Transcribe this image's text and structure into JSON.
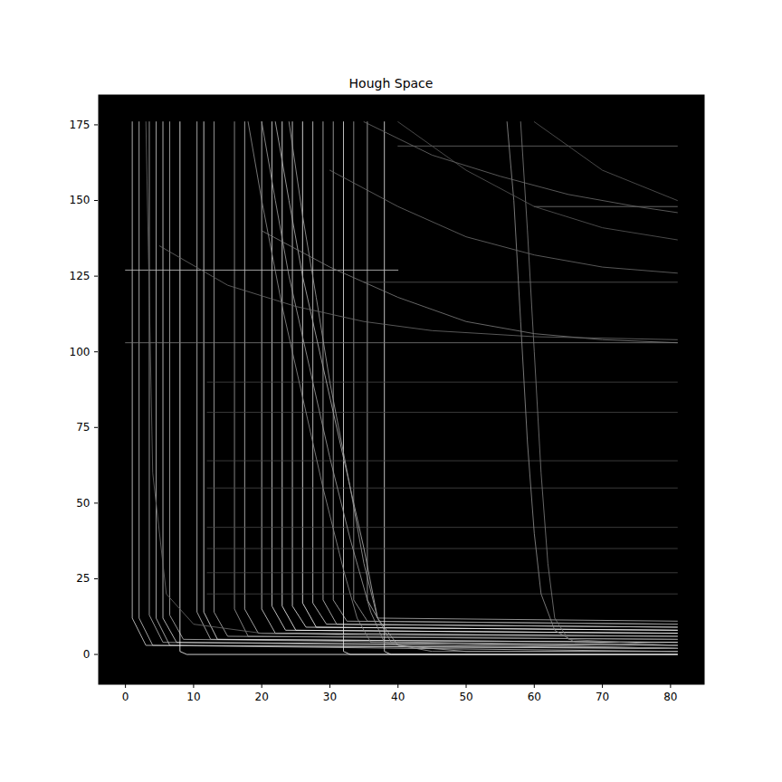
{
  "chart_data": {
    "type": "line",
    "title": "Hough Space",
    "xlim": [
      -4,
      85
    ],
    "ylim": [
      -10,
      185
    ],
    "xticks": [
      0,
      10,
      20,
      30,
      40,
      50,
      60,
      70,
      80
    ],
    "yticks": [
      0,
      25,
      50,
      75,
      100,
      125,
      150,
      175
    ],
    "grid": false,
    "series": [
      {
        "color": "#cccccc",
        "x": [
          1,
          1,
          3,
          81
        ],
        "values": [
          176,
          12,
          3,
          2
        ]
      },
      {
        "color": "#bbbbbb",
        "x": [
          2,
          2,
          4,
          81
        ],
        "values": [
          176,
          12,
          3,
          1
        ]
      },
      {
        "color": "#aaaaaa",
        "x": [
          3.5,
          3.5,
          5.5,
          81
        ],
        "values": [
          176,
          13,
          4,
          2
        ]
      },
      {
        "color": "#bbbbbb",
        "x": [
          4.5,
          4.5,
          6.5,
          81
        ],
        "values": [
          176,
          12,
          3,
          2
        ]
      },
      {
        "color": "#cccccc",
        "x": [
          5.5,
          5.5,
          7.5,
          81
        ],
        "values": [
          176,
          12,
          4,
          3
        ]
      },
      {
        "color": "#aaaaaa",
        "x": [
          6.5,
          6.5,
          8.5,
          81
        ],
        "values": [
          176,
          13,
          5,
          3
        ]
      },
      {
        "color": "#eeeeee",
        "x": [
          8,
          8,
          9,
          81
        ],
        "values": [
          176,
          1,
          0,
          0
        ]
      },
      {
        "color": "#bbbbbb",
        "x": [
          10.5,
          10.5,
          12.5,
          81
        ],
        "values": [
          176,
          14,
          5,
          4
        ]
      },
      {
        "color": "#dddddd",
        "x": [
          11.5,
          11.5,
          13.5,
          81
        ],
        "values": [
          176,
          14,
          5,
          4
        ]
      },
      {
        "color": "#aaaaaa",
        "x": [
          13,
          13,
          15,
          81
        ],
        "values": [
          176,
          14,
          6,
          5
        ]
      },
      {
        "color": "#999999",
        "x": [
          16,
          16,
          18,
          81
        ],
        "values": [
          176,
          15,
          6,
          5
        ]
      },
      {
        "color": "#bbbbbb",
        "x": [
          17.5,
          17.5,
          19.5,
          81
        ],
        "values": [
          176,
          15,
          7,
          6
        ]
      },
      {
        "color": "#cccccc",
        "x": [
          20,
          20,
          22,
          81
        ],
        "values": [
          176,
          15,
          7,
          6
        ]
      },
      {
        "color": "#dddddd",
        "x": [
          21.5,
          21.5,
          23.5,
          81
        ],
        "values": [
          176,
          16,
          8,
          7
        ]
      },
      {
        "color": "#eeeeee",
        "x": [
          23,
          23,
          25,
          81
        ],
        "values": [
          176,
          16,
          8,
          7
        ]
      },
      {
        "color": "#dddddd",
        "x": [
          24.5,
          24.5,
          26.5,
          81
        ],
        "values": [
          176,
          16,
          9,
          8
        ]
      },
      {
        "color": "#eeeeee",
        "x": [
          26,
          26,
          28,
          81
        ],
        "values": [
          176,
          17,
          9,
          8
        ]
      },
      {
        "color": "#cccccc",
        "x": [
          27.5,
          27.5,
          29.5,
          81
        ],
        "values": [
          176,
          17,
          10,
          9
        ]
      },
      {
        "color": "#bbbbbb",
        "x": [
          29,
          29,
          31,
          81
        ],
        "values": [
          176,
          18,
          10,
          9
        ]
      },
      {
        "color": "#aaaaaa",
        "x": [
          30.5,
          30.5,
          32.5,
          81
        ],
        "values": [
          176,
          18,
          11,
          10
        ]
      },
      {
        "color": "#dddddd",
        "x": [
          32,
          32,
          33,
          81
        ],
        "values": [
          176,
          1,
          0,
          0
        ]
      },
      {
        "color": "#999999",
        "x": [
          33.5,
          33.5,
          35.5,
          81
        ],
        "values": [
          176,
          18,
          11,
          10
        ]
      },
      {
        "color": "#aaaaaa",
        "x": [
          35.5,
          35.5,
          37,
          81
        ],
        "values": [
          176,
          18,
          12,
          11
        ]
      },
      {
        "color": "#dddddd",
        "x": [
          38,
          38,
          39,
          81
        ],
        "values": [
          176,
          1,
          0,
          0
        ]
      },
      {
        "color": "#bbbbbb",
        "x": [
          0,
          40
        ],
        "values": [
          127,
          127
        ]
      },
      {
        "color": "#777777",
        "x": [
          0,
          81
        ],
        "values": [
          103,
          103
        ]
      },
      {
        "color": "#555555",
        "x": [
          35,
          81
        ],
        "values": [
          123,
          123
        ]
      },
      {
        "color": "#666666",
        "x": [
          40,
          81
        ],
        "values": [
          168,
          168
        ]
      },
      {
        "color": "#777777",
        "x": [
          60,
          81
        ],
        "values": [
          148,
          148
        ]
      },
      {
        "color": "#444444",
        "x": [
          12,
          81
        ],
        "values": [
          20,
          20
        ]
      },
      {
        "color": "#444444",
        "x": [
          12,
          81
        ],
        "values": [
          27,
          27
        ]
      },
      {
        "color": "#444444",
        "x": [
          12,
          81
        ],
        "values": [
          35,
          35
        ]
      },
      {
        "color": "#444444",
        "x": [
          12,
          81
        ],
        "values": [
          42,
          42
        ]
      },
      {
        "color": "#444444",
        "x": [
          12,
          81
        ],
        "values": [
          55,
          55
        ]
      },
      {
        "color": "#444444",
        "x": [
          12,
          81
        ],
        "values": [
          64,
          64
        ]
      },
      {
        "color": "#444444",
        "x": [
          12,
          81
        ],
        "values": [
          80,
          80
        ]
      },
      {
        "color": "#444444",
        "x": [
          12,
          81
        ],
        "values": [
          90,
          90
        ]
      },
      {
        "color": "#999999",
        "x": [
          20,
          22,
          24,
          27,
          30,
          33,
          36,
          38,
          45,
          81
        ],
        "values": [
          176,
          150,
          125,
          95,
          65,
          38,
          14,
          4,
          1,
          1
        ]
      },
      {
        "color": "#aaaaaa",
        "x": [
          22,
          24,
          26,
          29,
          32,
          35,
          37,
          40,
          50,
          81
        ],
        "values": [
          176,
          150,
          125,
          95,
          65,
          35,
          12,
          3,
          1,
          1
        ]
      },
      {
        "color": "#999999",
        "x": [
          24,
          26,
          28,
          30,
          33,
          35,
          37,
          39,
          81
        ],
        "values": [
          176,
          145,
          118,
          90,
          55,
          30,
          12,
          4,
          2
        ]
      },
      {
        "color": "#888888",
        "x": [
          18,
          20,
          23,
          26,
          29,
          32,
          34,
          36,
          81
        ],
        "values": [
          176,
          150,
          115,
          85,
          55,
          28,
          12,
          4,
          2
        ]
      },
      {
        "color": "#888888",
        "x": [
          56,
          57,
          58,
          59,
          60,
          61,
          63,
          66,
          81
        ],
        "values": [
          176,
          150,
          110,
          70,
          40,
          20,
          8,
          4,
          3
        ]
      },
      {
        "color": "#777777",
        "x": [
          58,
          59,
          60,
          61,
          62,
          63,
          65,
          81
        ],
        "values": [
          176,
          140,
          100,
          60,
          30,
          12,
          5,
          3
        ]
      },
      {
        "color": "#666666",
        "x": [
          35,
          45,
          55,
          65,
          75,
          81
        ],
        "values": [
          176,
          165,
          158,
          152,
          148,
          146
        ]
      },
      {
        "color": "#666666",
        "x": [
          30,
          40,
          50,
          60,
          70,
          81
        ],
        "values": [
          160,
          148,
          138,
          132,
          128,
          126
        ]
      },
      {
        "color": "#777777",
        "x": [
          20,
          30,
          40,
          50,
          60,
          70,
          81
        ],
        "values": [
          140,
          128,
          118,
          110,
          106,
          104,
          103
        ]
      },
      {
        "color": "#666666",
        "x": [
          5,
          15,
          25,
          35,
          45,
          60,
          81
        ],
        "values": [
          135,
          122,
          115,
          110,
          107,
          105,
          104
        ]
      },
      {
        "color": "#555555",
        "x": [
          40,
          50,
          60,
          70,
          81
        ],
        "values": [
          176,
          160,
          148,
          141,
          137
        ]
      },
      {
        "color": "#555555",
        "x": [
          60,
          70,
          81
        ],
        "values": [
          176,
          160,
          150
        ]
      },
      {
        "color": "#666666",
        "x": [
          3,
          4,
          6,
          10,
          20,
          40,
          81
        ],
        "values": [
          176,
          60,
          20,
          10,
          7,
          6,
          6
        ]
      }
    ]
  }
}
